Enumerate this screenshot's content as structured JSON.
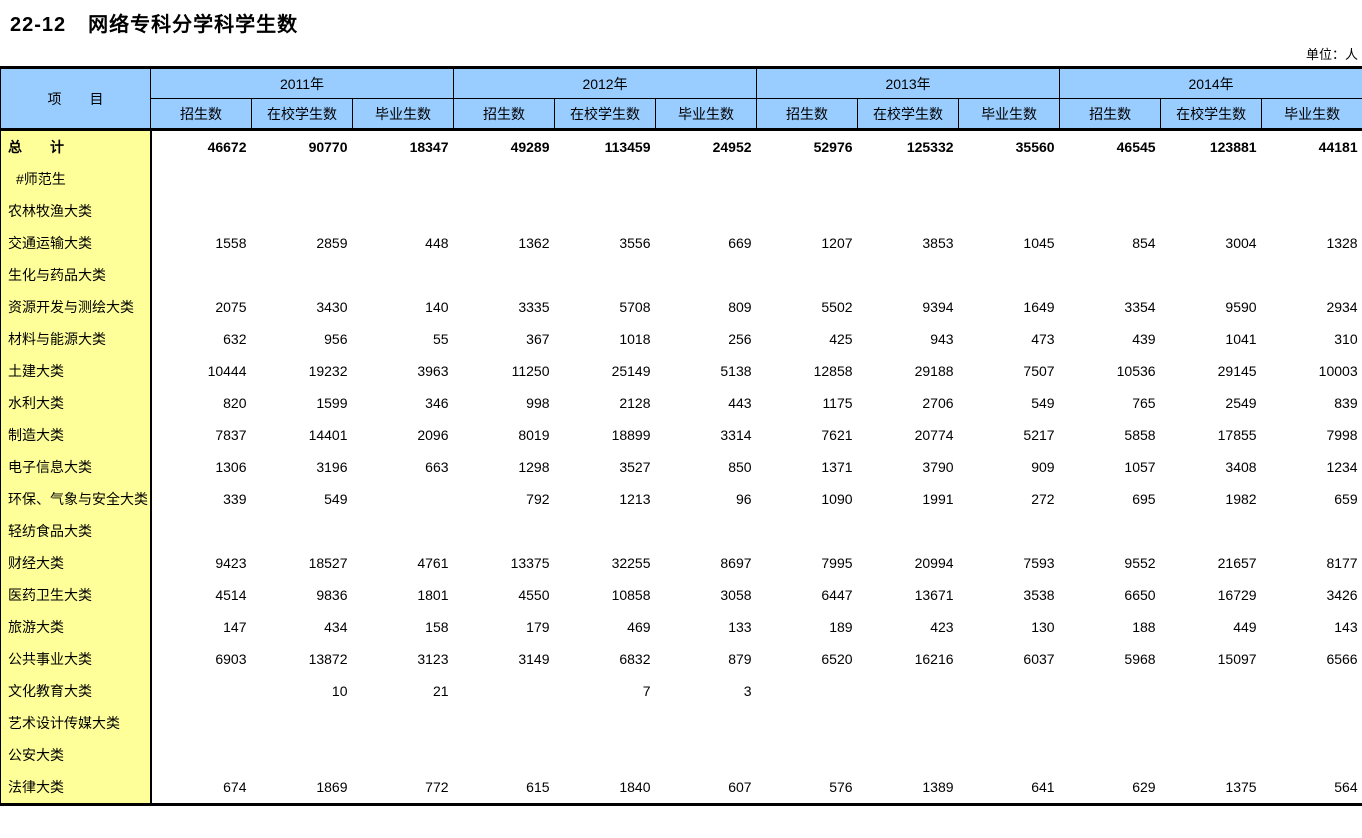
{
  "page": {
    "code": "22-12",
    "title": "网络专科分学科学生数",
    "unit_label": "单位：人"
  },
  "colors": {
    "header_bg": "#99CCFF",
    "label_col_bg": "#FFFF99",
    "border": "#000000",
    "page_bg": "#FFFFFF"
  },
  "table": {
    "item_header": "项　　目",
    "years": [
      "2011年",
      "2012年",
      "2013年",
      "2014年"
    ],
    "sub_headers": [
      "招生数",
      "在校学生数",
      "毕业生数"
    ],
    "rows": [
      {
        "label": "总　　计",
        "bold": true,
        "indent": 0,
        "values": [
          "46672",
          "90770",
          "18347",
          "49289",
          "113459",
          "24952",
          "52976",
          "125332",
          "35560",
          "46545",
          "123881",
          "44181"
        ]
      },
      {
        "label": "#师范生",
        "bold": false,
        "indent": 1,
        "values": [
          "",
          "",
          "",
          "",
          "",
          "",
          "",
          "",
          "",
          "",
          "",
          ""
        ]
      },
      {
        "label": "农林牧渔大类",
        "bold": false,
        "indent": 0,
        "values": [
          "",
          "",
          "",
          "",
          "",
          "",
          "",
          "",
          "",
          "",
          "",
          ""
        ]
      },
      {
        "label": "交通运输大类",
        "bold": false,
        "indent": 0,
        "values": [
          "1558",
          "2859",
          "448",
          "1362",
          "3556",
          "669",
          "1207",
          "3853",
          "1045",
          "854",
          "3004",
          "1328"
        ]
      },
      {
        "label": "生化与药品大类",
        "bold": false,
        "indent": 0,
        "values": [
          "",
          "",
          "",
          "",
          "",
          "",
          "",
          "",
          "",
          "",
          "",
          ""
        ]
      },
      {
        "label": "资源开发与测绘大类",
        "bold": false,
        "indent": 0,
        "values": [
          "2075",
          "3430",
          "140",
          "3335",
          "5708",
          "809",
          "5502",
          "9394",
          "1649",
          "3354",
          "9590",
          "2934"
        ]
      },
      {
        "label": "材料与能源大类",
        "bold": false,
        "indent": 0,
        "values": [
          "632",
          "956",
          "55",
          "367",
          "1018",
          "256",
          "425",
          "943",
          "473",
          "439",
          "1041",
          "310"
        ]
      },
      {
        "label": "土建大类",
        "bold": false,
        "indent": 0,
        "values": [
          "10444",
          "19232",
          "3963",
          "11250",
          "25149",
          "5138",
          "12858",
          "29188",
          "7507",
          "10536",
          "29145",
          "10003"
        ]
      },
      {
        "label": "水利大类",
        "bold": false,
        "indent": 0,
        "values": [
          "820",
          "1599",
          "346",
          "998",
          "2128",
          "443",
          "1175",
          "2706",
          "549",
          "765",
          "2549",
          "839"
        ]
      },
      {
        "label": "制造大类",
        "bold": false,
        "indent": 0,
        "values": [
          "7837",
          "14401",
          "2096",
          "8019",
          "18899",
          "3314",
          "7621",
          "20774",
          "5217",
          "5858",
          "17855",
          "7998"
        ]
      },
      {
        "label": "电子信息大类",
        "bold": false,
        "indent": 0,
        "values": [
          "1306",
          "3196",
          "663",
          "1298",
          "3527",
          "850",
          "1371",
          "3790",
          "909",
          "1057",
          "3408",
          "1234"
        ]
      },
      {
        "label": "环保、气象与安全大类",
        "bold": false,
        "indent": 0,
        "values": [
          "339",
          "549",
          "",
          "792",
          "1213",
          "96",
          "1090",
          "1991",
          "272",
          "695",
          "1982",
          "659"
        ]
      },
      {
        "label": "轻纺食品大类",
        "bold": false,
        "indent": 0,
        "values": [
          "",
          "",
          "",
          "",
          "",
          "",
          "",
          "",
          "",
          "",
          "",
          ""
        ]
      },
      {
        "label": "财经大类",
        "bold": false,
        "indent": 0,
        "values": [
          "9423",
          "18527",
          "4761",
          "13375",
          "32255",
          "8697",
          "7995",
          "20994",
          "7593",
          "9552",
          "21657",
          "8177"
        ]
      },
      {
        "label": "医药卫生大类",
        "bold": false,
        "indent": 0,
        "values": [
          "4514",
          "9836",
          "1801",
          "4550",
          "10858",
          "3058",
          "6447",
          "13671",
          "3538",
          "6650",
          "16729",
          "3426"
        ]
      },
      {
        "label": "旅游大类",
        "bold": false,
        "indent": 0,
        "values": [
          "147",
          "434",
          "158",
          "179",
          "469",
          "133",
          "189",
          "423",
          "130",
          "188",
          "449",
          "143"
        ]
      },
      {
        "label": "公共事业大类",
        "bold": false,
        "indent": 0,
        "values": [
          "6903",
          "13872",
          "3123",
          "3149",
          "6832",
          "879",
          "6520",
          "16216",
          "6037",
          "5968",
          "15097",
          "6566"
        ]
      },
      {
        "label": "文化教育大类",
        "bold": false,
        "indent": 0,
        "values": [
          "",
          "10",
          "21",
          "",
          "7",
          "3",
          "",
          "",
          "",
          "",
          "",
          ""
        ]
      },
      {
        "label": "艺术设计传媒大类",
        "bold": false,
        "indent": 0,
        "values": [
          "",
          "",
          "",
          "",
          "",
          "",
          "",
          "",
          "",
          "",
          "",
          ""
        ]
      },
      {
        "label": "公安大类",
        "bold": false,
        "indent": 0,
        "values": [
          "",
          "",
          "",
          "",
          "",
          "",
          "",
          "",
          "",
          "",
          "",
          ""
        ]
      },
      {
        "label": "法律大类",
        "bold": false,
        "indent": 0,
        "values": [
          "674",
          "1869",
          "772",
          "615",
          "1840",
          "607",
          "576",
          "1389",
          "641",
          "629",
          "1375",
          "564"
        ]
      }
    ]
  }
}
